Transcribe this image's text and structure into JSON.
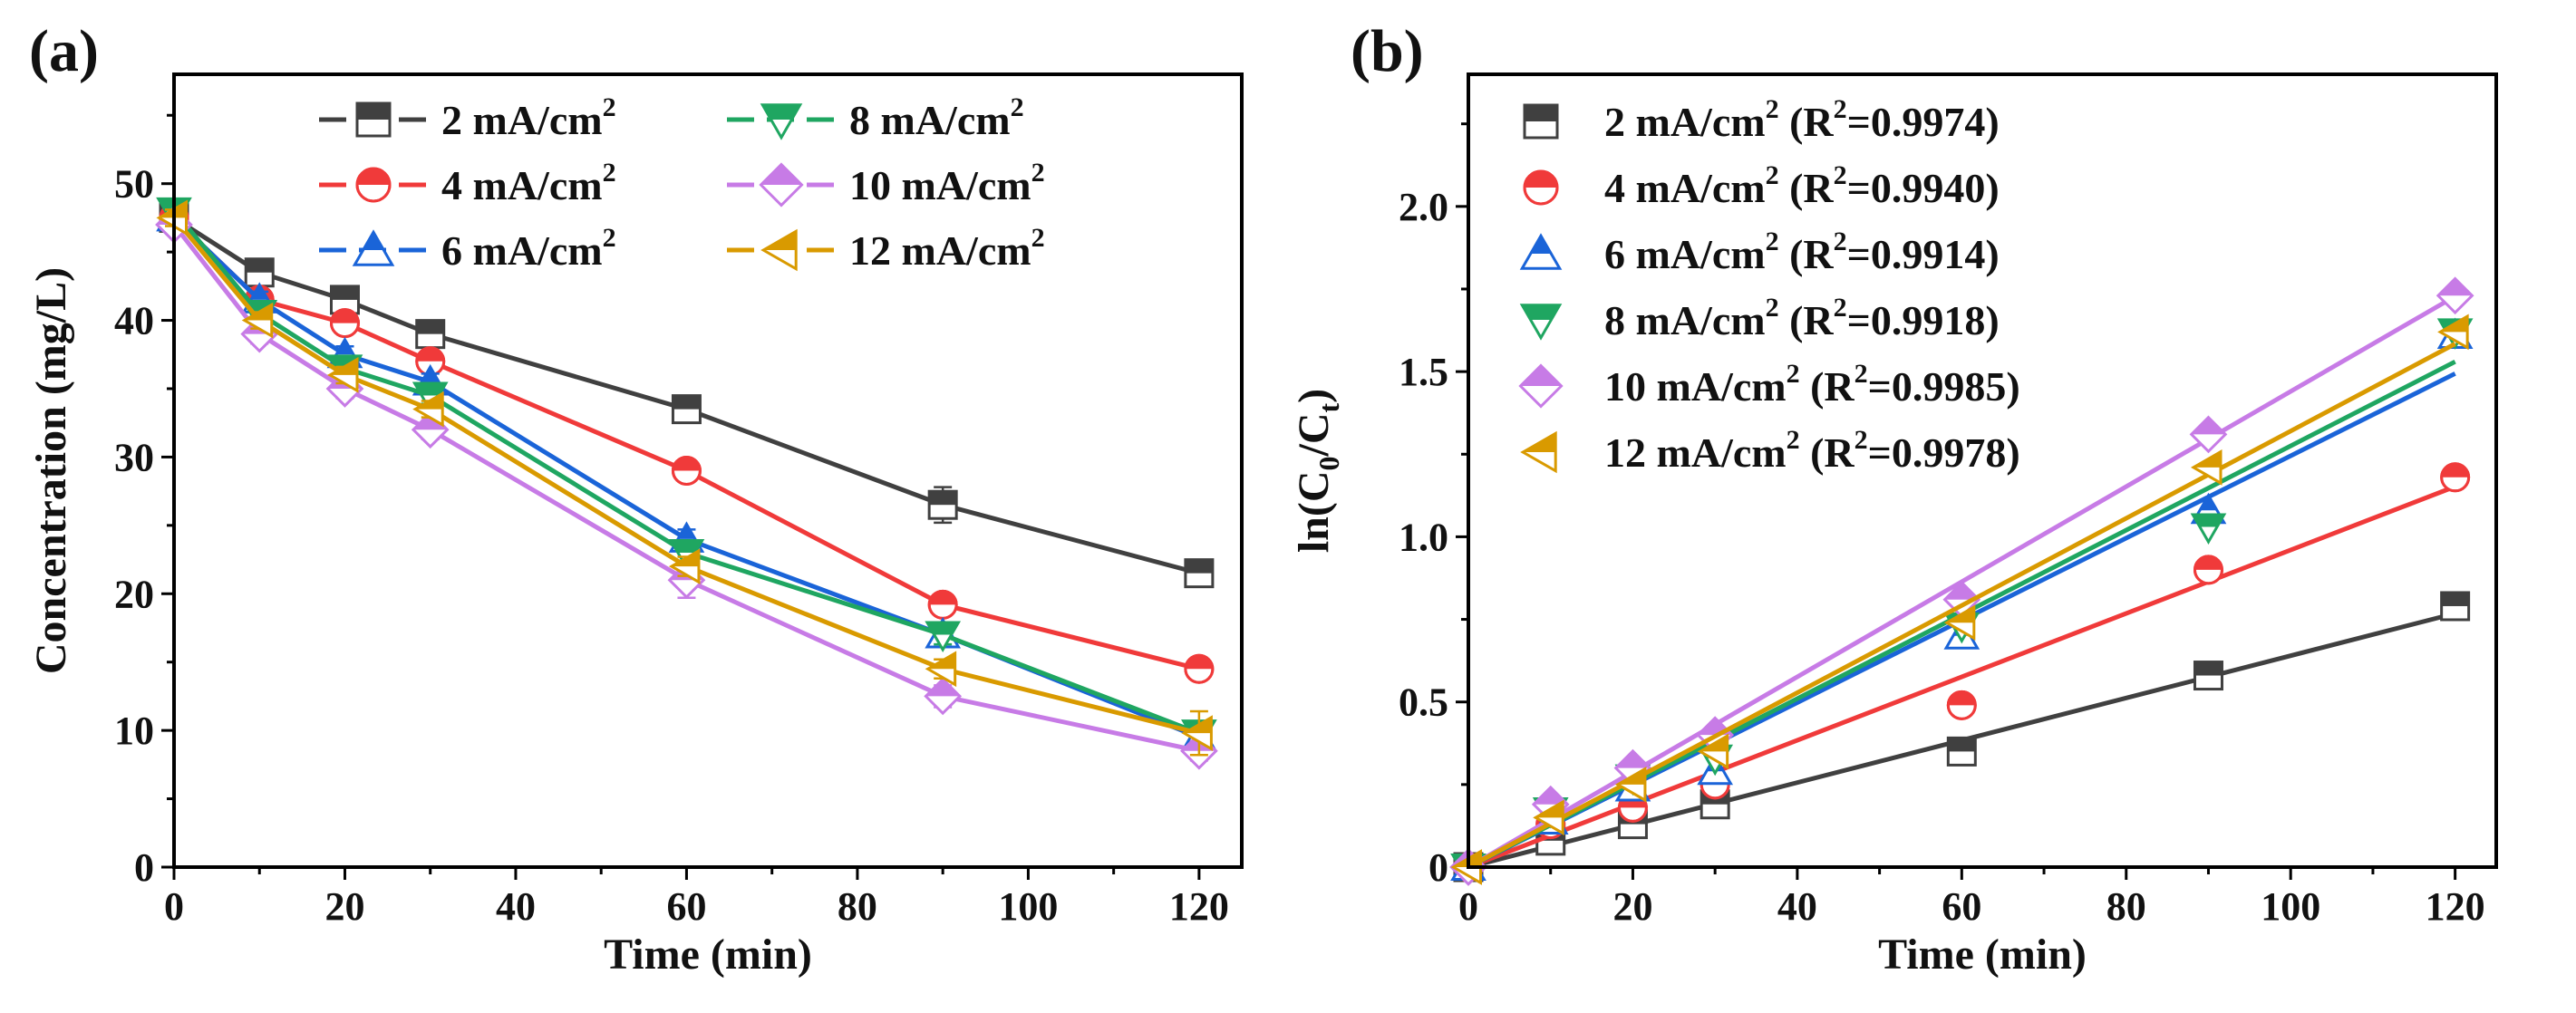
{
  "chart_data": [
    {
      "panel_label": "(a)",
      "type": "line",
      "xlabel": "Time (min)",
      "ylabel": "Concentration (mg/L)",
      "xlim": [
        0,
        125
      ],
      "ylim": [
        0,
        58
      ],
      "xticks": [
        0,
        20,
        40,
        60,
        80,
        100,
        120
      ],
      "yticks": [
        0,
        10,
        20,
        30,
        40,
        50
      ],
      "x": [
        0,
        10,
        20,
        30,
        60,
        90,
        120
      ],
      "legend_position": "top-right, two columns",
      "series": [
        {
          "name": "2 mA/cm",
          "sup": "2",
          "color": "#404040",
          "marker": "square",
          "values": [
            47.5,
            43.5,
            41.5,
            39.0,
            33.5,
            26.5,
            21.5
          ],
          "err": [
            0.6,
            0.6,
            0.6,
            0.7,
            0.8,
            1.3,
            0.7
          ]
        },
        {
          "name": "4 mA/cm",
          "sup": "2",
          "color": "#f03a3a",
          "marker": "circle",
          "values": [
            47.5,
            41.5,
            39.8,
            37.0,
            29.0,
            19.2,
            14.5
          ],
          "err": [
            0.6,
            0.6,
            0.6,
            0.6,
            0.7,
            0.7,
            0.6
          ]
        },
        {
          "name": "6 mA/cm",
          "sup": "2",
          "color": "#1a64d8",
          "marker": "triangle-up",
          "values": [
            47.5,
            41.5,
            37.5,
            35.5,
            24.0,
            17.0,
            9.5
          ],
          "err": [
            0.6,
            0.6,
            0.6,
            0.6,
            0.7,
            0.7,
            0.6
          ]
        },
        {
          "name": "8 mA/cm",
          "sup": "2",
          "color": "#1fa661",
          "marker": "triangle-down",
          "values": [
            48.0,
            40.5,
            36.5,
            34.5,
            23.0,
            17.0,
            9.8
          ],
          "err": [
            0.6,
            0.6,
            0.6,
            0.6,
            0.7,
            0.7,
            0.6
          ]
        },
        {
          "name": "10 mA/cm",
          "sup": "2",
          "color": "#c77be6",
          "marker": "diamond",
          "values": [
            47.0,
            39.0,
            35.0,
            32.0,
            21.0,
            12.5,
            8.5
          ],
          "err": [
            0.6,
            0.7,
            0.7,
            0.7,
            1.3,
            0.8,
            0.7
          ]
        },
        {
          "name": "12 mA/cm",
          "sup": "2",
          "color": "#d99a00",
          "marker": "triangle-left",
          "values": [
            47.5,
            40.0,
            36.0,
            33.5,
            22.0,
            14.5,
            9.8
          ],
          "err": [
            0.6,
            0.6,
            0.6,
            0.6,
            0.7,
            0.7,
            1.6
          ]
        }
      ]
    },
    {
      "panel_label": "(b)",
      "type": "scatter",
      "xlabel": "Time (min)",
      "ylabel": "ln(C",
      "ylabel_sub": [
        "0",
        "t"
      ],
      "xlim": [
        0,
        125
      ],
      "ylim": [
        0,
        2.4
      ],
      "xticks": [
        0,
        20,
        40,
        60,
        80,
        100,
        120
      ],
      "yticks": [
        0,
        0.5,
        1.0,
        1.5,
        2.0
      ],
      "ytick_labels": [
        "0",
        "0.5",
        "1.0",
        "1.5",
        "2.0"
      ],
      "x": [
        0,
        10,
        20,
        30,
        60,
        90,
        120
      ],
      "legend_position": "top-left",
      "series": [
        {
          "name": "2 mA/cm",
          "sup": "2",
          "r2": "(R",
          "r2_sup": "2",
          "r2_val": "=0.9974)",
          "color": "#404040",
          "marker": "square",
          "values": [
            0,
            0.08,
            0.13,
            0.19,
            0.35,
            0.58,
            0.79
          ],
          "fit_slope": 0.0064
        },
        {
          "name": "4 mA/cm",
          "sup": "2",
          "r2": "(R",
          "r2_sup": "2",
          "r2_val": "=0.9940)",
          "color": "#f03a3a",
          "marker": "circle",
          "values": [
            0,
            0.13,
            0.18,
            0.25,
            0.49,
            0.9,
            1.18
          ],
          "fit_slope": 0.0096
        },
        {
          "name": "6 mA/cm",
          "sup": "2",
          "r2": "(R",
          "r2_sup": "2",
          "r2_val": "=0.9914)",
          "color": "#1a64d8",
          "marker": "triangle-up",
          "values": [
            0,
            0.14,
            0.24,
            0.29,
            0.7,
            1.08,
            1.61
          ],
          "fit_slope": 0.01245
        },
        {
          "name": "8 mA/cm",
          "sup": "2",
          "r2": "(R",
          "r2_sup": "2",
          "r2_val": "=0.9918)",
          "color": "#1fa661",
          "marker": "triangle-down",
          "values": [
            0,
            0.17,
            0.27,
            0.33,
            0.73,
            1.03,
            1.62
          ],
          "fit_slope": 0.01275
        },
        {
          "name": "10 mA/cm",
          "sup": "2",
          "r2": "(R",
          "r2_sup": "2",
          "r2_val": "=0.9985)",
          "color": "#c77be6",
          "marker": "diamond",
          "values": [
            0,
            0.19,
            0.3,
            0.4,
            0.81,
            1.31,
            1.73
          ],
          "fit_slope": 0.0144
        },
        {
          "name": "12 mA/cm",
          "sup": "2",
          "r2": "(R",
          "r2_sup": "2",
          "r2_val": "=0.9978)",
          "color": "#d99a00",
          "marker": "triangle-left",
          "values": [
            0,
            0.15,
            0.25,
            0.35,
            0.74,
            1.21,
            1.62
          ],
          "fit_slope": 0.0132
        }
      ]
    }
  ]
}
